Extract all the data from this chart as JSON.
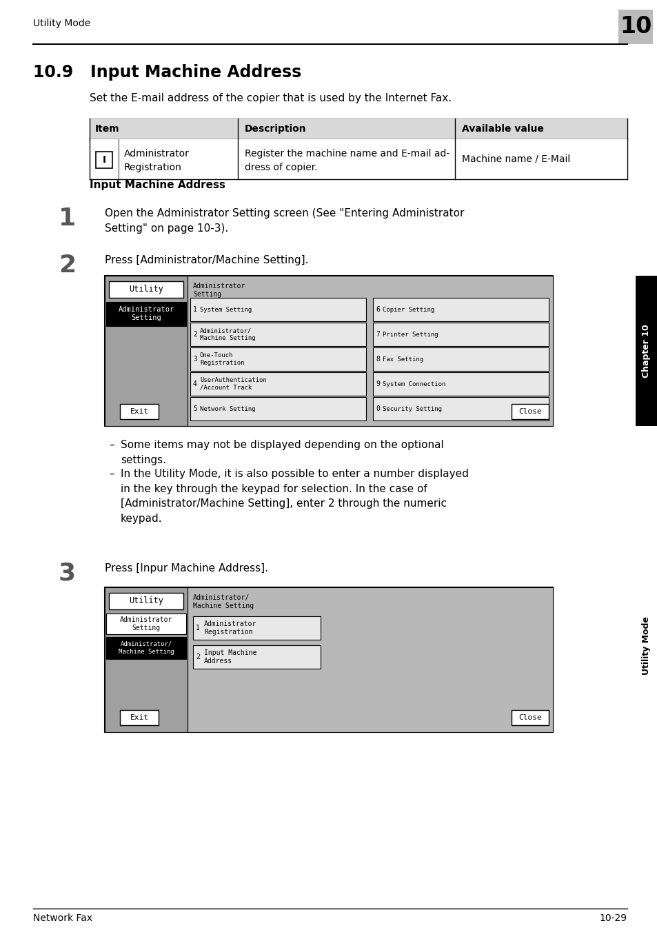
{
  "page_bg": "#ffffff",
  "header_text": "Utility Mode",
  "header_num": "10",
  "section_title": "10.9   Input Machine Address",
  "section_desc": "Set the E-mail address of the copier that is used by the Internet Fax.",
  "table_headers": [
    "Item",
    "Description",
    "Available value"
  ],
  "table_row_icon": "I",
  "table_row_col1": "Administrator\nRegistration",
  "table_row_col2": "Register the machine name and E-mail ad-\ndress of copier.",
  "table_row_col3": "Machine name / E-Mail",
  "subsection_title": "Input Machine Address",
  "step1_num": "1",
  "step1_text": "Open the Administrator Setting screen (See \"Entering Administrator\nSetting\" on page 10-3).",
  "step2_num": "2",
  "step2_text": "Press [Administrator/Machine Setting].",
  "step3_num": "3",
  "step3_text": "Press [Inpur Machine Address].",
  "bullet1": "Some items may not be displayed depending on the optional\nsettings.",
  "bullet2": "In the Utility Mode, it is also possible to enter a number displayed\nin the key through the keypad for selection. In the case of\n[Administrator/Machine Setting], enter 2 through the numeric\nkeypad.",
  "footer_left": "Network Fax",
  "footer_right": "10-29",
  "sidebar_ch": "Chapter 10",
  "sidebar_util": "Utility Mode",
  "table_header_bg": "#d8d8d8",
  "screen_outer_bg": "#a8a8a8",
  "screen_inner_bg": "#c8c8c8",
  "btn_bg": "#ffffff",
  "selected_btn_bg": "#000000"
}
